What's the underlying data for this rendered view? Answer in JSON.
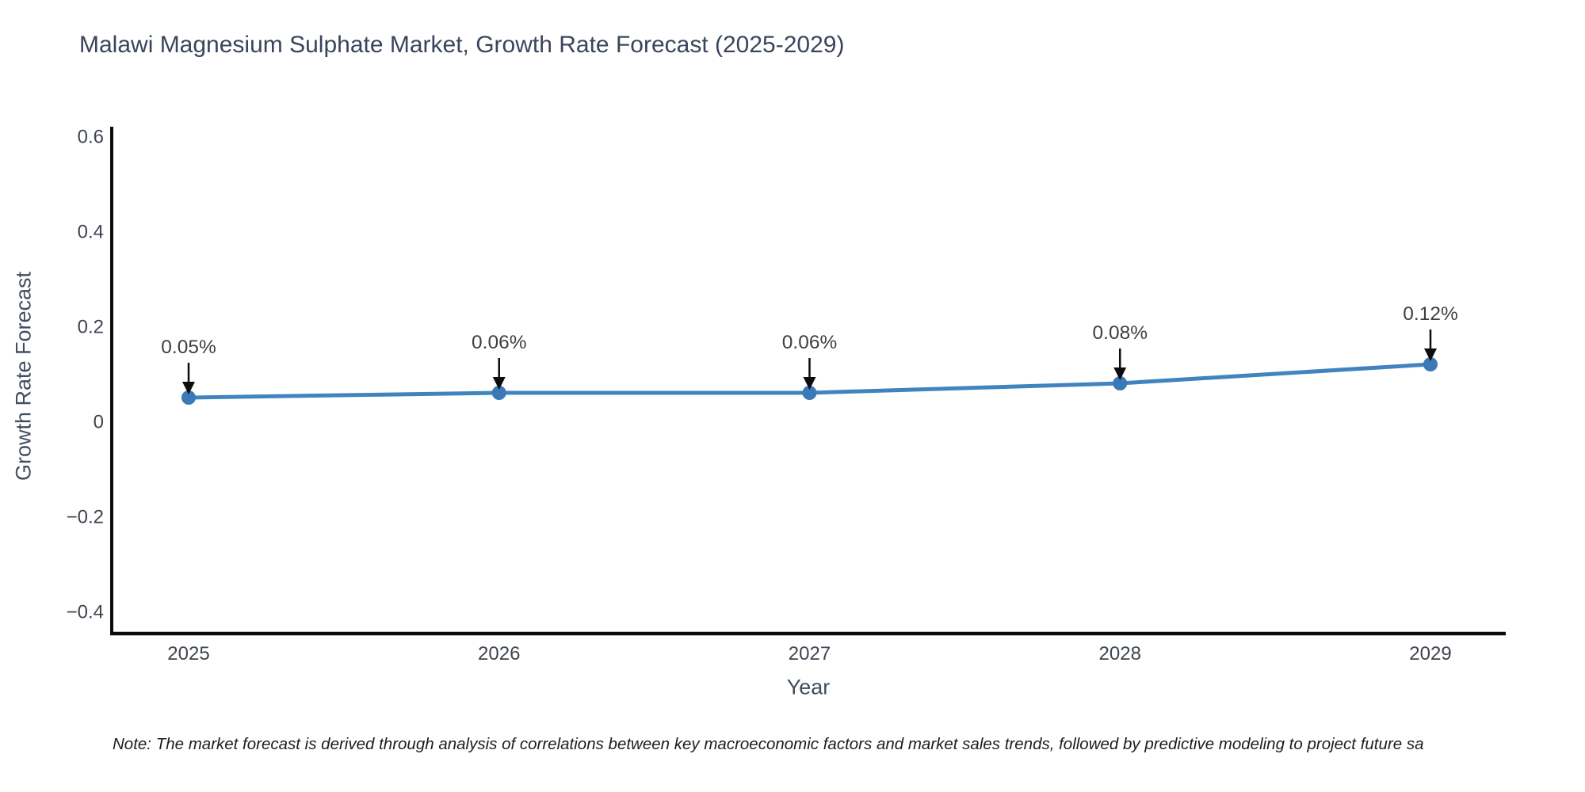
{
  "title": {
    "text": "Malawi Magnesium Sulphate Market, Growth Rate Forecast (2025-2029)",
    "color": "#3a455c"
  },
  "note": {
    "text": "Note: The market forecast is derived through analysis of correlations between key macroeconomic factors and market sales trends, followed by predictive modeling to project future sa"
  },
  "chart_data": {
    "type": "line",
    "title": "Malawi Magnesium Sulphate Market, Growth Rate Forecast (2025-2029)",
    "xlabel": "Year",
    "ylabel": "Growth Rate Forecast",
    "categories": [
      "2025",
      "2026",
      "2027",
      "2028",
      "2029"
    ],
    "series": [
      {
        "name": "Growth Rate Forecast",
        "values": [
          0.05,
          0.06,
          0.06,
          0.08,
          0.12
        ],
        "labels": [
          "0.05%",
          "0.06%",
          "0.06%",
          "0.08%",
          "0.12%"
        ]
      }
    ],
    "yticks": [
      {
        "label": "0.6",
        "value": 0.6
      },
      {
        "label": "0.4",
        "value": 0.4
      },
      {
        "label": "0.2",
        "value": 0.2
      },
      {
        "label": "0",
        "value": 0
      },
      {
        "label": "−0.2",
        "value": -0.2
      },
      {
        "label": "−0.4",
        "value": -0.4
      }
    ],
    "ylim": [
      -0.44,
      0.62
    ],
    "grid": false,
    "legend": "none",
    "annotation_style": "down-arrow-to-point",
    "colors": {
      "line": "#4183bf",
      "marker": "#3a79b5",
      "arrow": "#0d0d0d",
      "axis": "#0b0b0b",
      "tick_text": "#3e4550",
      "annotation_text": "#3d3f44"
    }
  }
}
